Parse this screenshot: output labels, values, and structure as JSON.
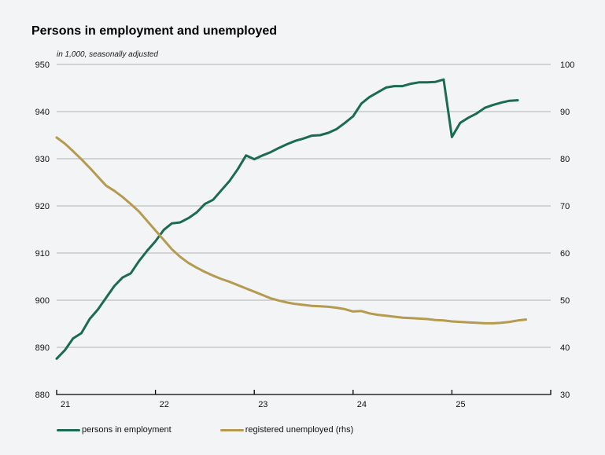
{
  "header": {
    "title": "Persons in employment and unemployed",
    "subtitle": "in 1,000, seasonally adjusted"
  },
  "colors": {
    "background": "#f2f4f6",
    "grid": "#b3b3b3",
    "axis": "#000000",
    "employment_line": "#1a6b52",
    "unemployed_line": "#b49b4f"
  },
  "chart_data": {
    "type": "line",
    "title": "Persons in employment and unemployed",
    "subtitle": "in 1,000, seasonally adjusted",
    "legend_position": "bottom-left",
    "grid": "horizontal-only",
    "x_axis": {
      "ticks": [
        "21",
        "22",
        "23",
        "24",
        "25"
      ],
      "start": "Jan 2021",
      "months_span": 60,
      "frequency": "monthly"
    },
    "y_left": {
      "min": 880,
      "max": 950,
      "step": 10,
      "ticks": [
        950,
        940,
        930,
        920,
        910,
        900,
        890,
        880
      ]
    },
    "y_right": {
      "min": 30,
      "max": 100,
      "step": 10,
      "ticks": [
        100,
        90,
        80,
        70,
        60,
        50,
        40,
        30
      ]
    },
    "series": [
      {
        "name": "persons in employment",
        "axis": "left",
        "color": "#1a6b52",
        "start_month": "2021-01",
        "values": [
          887.6,
          889.4,
          891.9,
          893.0,
          896.0,
          898.0,
          900.5,
          903.0,
          904.8,
          905.7,
          908.3,
          910.5,
          912.5,
          914.9,
          916.3,
          916.5,
          917.4,
          918.6,
          920.4,
          921.3,
          923.3,
          925.3,
          927.8,
          930.7,
          929.9,
          930.7,
          931.4,
          932.3,
          933.1,
          933.8,
          934.3,
          934.9,
          935.0,
          935.5,
          936.3,
          937.6,
          939.0,
          941.7,
          943.1,
          944.1,
          945.1,
          945.4,
          945.4,
          945.9,
          946.2,
          946.2,
          946.3,
          946.8,
          934.6,
          937.6,
          938.7,
          939.6,
          940.8,
          941.4,
          941.9,
          942.3,
          942.4
        ]
      },
      {
        "name": "registered unemployed (rhs)",
        "axis": "right",
        "color": "#b49b4f",
        "start_month": "2021-01",
        "values": [
          84.5,
          83.2,
          81.6,
          79.9,
          78.1,
          76.2,
          74.3,
          73.2,
          71.9,
          70.4,
          68.8,
          66.8,
          64.8,
          62.8,
          60.8,
          59.2,
          57.9,
          56.9,
          56.0,
          55.2,
          54.5,
          53.9,
          53.2,
          52.5,
          51.8,
          51.1,
          50.4,
          49.9,
          49.5,
          49.2,
          49.0,
          48.8,
          48.7,
          48.6,
          48.4,
          48.1,
          47.6,
          47.7,
          47.2,
          46.9,
          46.7,
          46.5,
          46.3,
          46.2,
          46.1,
          46.0,
          45.8,
          45.7,
          45.5,
          45.4,
          45.3,
          45.2,
          45.1,
          45.1,
          45.2,
          45.4,
          45.7,
          45.9
        ]
      }
    ]
  }
}
